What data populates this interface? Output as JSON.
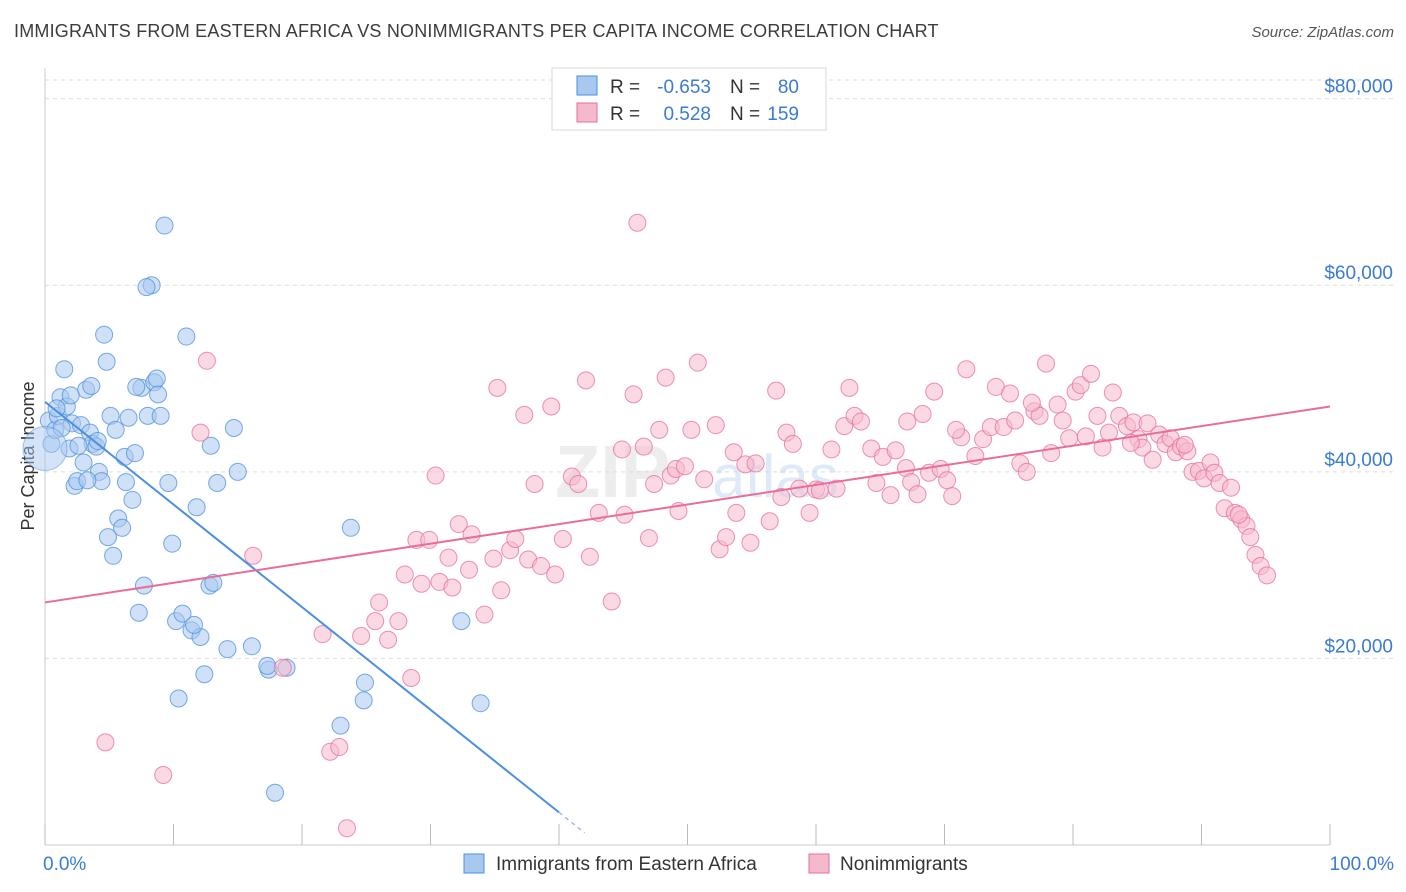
{
  "title": "IMMIGRANTS FROM EASTERN AFRICA VS NONIMMIGRANTS PER CAPITA INCOME CORRELATION CHART",
  "source": "Source: ZipAtlas.com",
  "watermark": {
    "zip": "ZIP",
    "atlas": "atlas"
  },
  "colors": {
    "blue": "#4a8fe0",
    "blue_fill": "#a9c8f0",
    "pink": "#e86e98",
    "pink_fill": "#f5b9cd",
    "axis_label": "#3a7bd5",
    "grid": "#dddddd"
  },
  "chart_data": {
    "type": "scatter",
    "xlabel": "",
    "ylabel": "Per Capita Income",
    "xlim": [
      0,
      100
    ],
    "ylim": [
      0,
      82000
    ],
    "x_tick_labels": [
      "0.0%",
      "100.0%"
    ],
    "y_ticks": [
      20000,
      40000,
      60000,
      80000
    ],
    "y_tick_labels": [
      "$20,000",
      "$40,000",
      "$60,000",
      "$80,000"
    ],
    "grid": true,
    "legend_top": [
      {
        "r_label": "R =",
        "r_value": "-0.653",
        "n_label": "N =",
        "n_value": "80",
        "color": "blue"
      },
      {
        "r_label": "R =",
        "r_value": "0.528",
        "n_label": "N =",
        "n_value": "159",
        "color": "pink"
      }
    ],
    "series": [
      {
        "name": "Immigrants from Eastern Africa",
        "color": "blue",
        "trend": {
          "x0": 0,
          "y0": 47500,
          "x1": 40,
          "y1": 3500,
          "dash_to_x": 42
        },
        "points": [
          [
            0.3,
            45500
          ],
          [
            0.5,
            43000
          ],
          [
            0.8,
            44500
          ],
          [
            1.0,
            46000
          ],
          [
            1.2,
            48000
          ],
          [
            1.5,
            51000
          ],
          [
            1.7,
            47000
          ],
          [
            1.9,
            42500
          ],
          [
            2.1,
            45200
          ],
          [
            2.3,
            38500
          ],
          [
            2.5,
            39000
          ],
          [
            2.8,
            45000
          ],
          [
            3.0,
            41000
          ],
          [
            3.2,
            48800
          ],
          [
            3.5,
            44200
          ],
          [
            3.7,
            43000
          ],
          [
            4.0,
            42700
          ],
          [
            4.2,
            40000
          ],
          [
            4.4,
            39000
          ],
          [
            4.6,
            54700
          ],
          [
            4.9,
            33000
          ],
          [
            5.1,
            46000
          ],
          [
            5.3,
            31000
          ],
          [
            5.5,
            44500
          ],
          [
            5.7,
            35000
          ],
          [
            6.0,
            34000
          ],
          [
            6.2,
            41600
          ],
          [
            6.5,
            45800
          ],
          [
            6.8,
            37000
          ],
          [
            7.0,
            42000
          ],
          [
            7.3,
            24900
          ],
          [
            7.5,
            49000
          ],
          [
            7.7,
            27800
          ],
          [
            8.0,
            46000
          ],
          [
            8.3,
            60000
          ],
          [
            8.5,
            49600
          ],
          [
            8.8,
            48300
          ],
          [
            9.0,
            46000
          ],
          [
            9.3,
            66400
          ],
          [
            9.6,
            38800
          ],
          [
            9.9,
            32300
          ],
          [
            10.2,
            24000
          ],
          [
            10.4,
            15700
          ],
          [
            10.7,
            24800
          ],
          [
            11.0,
            54500
          ],
          [
            11.4,
            23000
          ],
          [
            11.8,
            36200
          ],
          [
            12.1,
            22300
          ],
          [
            12.4,
            18300
          ],
          [
            12.8,
            27800
          ],
          [
            13.1,
            28100
          ],
          [
            13.4,
            38800
          ],
          [
            14.2,
            21000
          ],
          [
            15.0,
            40000
          ],
          [
            16.1,
            21300
          ],
          [
            17.4,
            18800
          ],
          [
            17.9,
            5600
          ],
          [
            18.8,
            19000
          ],
          [
            23.0,
            12800
          ],
          [
            23.8,
            34000
          ],
          [
            24.8,
            15500
          ],
          [
            24.9,
            17400
          ],
          [
            32.4,
            24000
          ],
          [
            33.9,
            15200
          ],
          [
            0.9,
            46800
          ],
          [
            1.3,
            44700
          ],
          [
            2.0,
            48200
          ],
          [
            2.6,
            42800
          ],
          [
            3.3,
            39100
          ],
          [
            3.6,
            49200
          ],
          [
            4.1,
            43300
          ],
          [
            4.8,
            51800
          ],
          [
            6.3,
            38900
          ],
          [
            7.1,
            49100
          ],
          [
            7.9,
            59800
          ],
          [
            8.7,
            50000
          ],
          [
            11.6,
            23600
          ],
          [
            12.9,
            42800
          ],
          [
            14.7,
            44700
          ],
          [
            17.3,
            19200
          ]
        ],
        "outliers_large": [
          [
            0,
            42500
          ]
        ]
      },
      {
        "name": "Nonimmigrants",
        "color": "pink",
        "trend": {
          "x0": 0,
          "y0": 26000,
          "x1": 100,
          "y1": 47000
        },
        "points": [
          [
            4.7,
            11000
          ],
          [
            9.2,
            7500
          ],
          [
            12.1,
            44200
          ],
          [
            12.6,
            51900
          ],
          [
            16.2,
            31000
          ],
          [
            18.5,
            19000
          ],
          [
            21.6,
            22600
          ],
          [
            22.2,
            10000
          ],
          [
            22.9,
            10500
          ],
          [
            23.5,
            1800
          ],
          [
            24.6,
            22400
          ],
          [
            25.7,
            24000
          ],
          [
            26.0,
            26000
          ],
          [
            26.7,
            22000
          ],
          [
            27.5,
            24000
          ],
          [
            28.0,
            29000
          ],
          [
            28.5,
            17900
          ],
          [
            28.9,
            32700
          ],
          [
            29.3,
            28000
          ],
          [
            29.9,
            32700
          ],
          [
            30.4,
            39600
          ],
          [
            30.7,
            28200
          ],
          [
            31.4,
            30800
          ],
          [
            31.7,
            27600
          ],
          [
            32.2,
            34400
          ],
          [
            33.0,
            29500
          ],
          [
            33.2,
            33300
          ],
          [
            34.2,
            24700
          ],
          [
            34.9,
            30700
          ],
          [
            35.2,
            49000
          ],
          [
            35.5,
            27300
          ],
          [
            36.2,
            31600
          ],
          [
            36.6,
            32800
          ],
          [
            37.3,
            46100
          ],
          [
            37.6,
            30600
          ],
          [
            38.1,
            38700
          ],
          [
            38.6,
            29900
          ],
          [
            39.4,
            47000
          ],
          [
            39.7,
            29000
          ],
          [
            40.3,
            32800
          ],
          [
            41.0,
            39500
          ],
          [
            41.5,
            38700
          ],
          [
            42.1,
            49800
          ],
          [
            42.4,
            30900
          ],
          [
            43.1,
            35600
          ],
          [
            44.1,
            26100
          ],
          [
            44.9,
            42400
          ],
          [
            45.1,
            35400
          ],
          [
            45.8,
            48300
          ],
          [
            46.1,
            66700
          ],
          [
            46.6,
            42700
          ],
          [
            47.0,
            32900
          ],
          [
            47.4,
            38700
          ],
          [
            47.8,
            44500
          ],
          [
            48.3,
            50100
          ],
          [
            48.7,
            39600
          ],
          [
            49.1,
            40300
          ],
          [
            49.3,
            35800
          ],
          [
            49.8,
            40600
          ],
          [
            50.3,
            44500
          ],
          [
            50.8,
            51700
          ],
          [
            51.3,
            39200
          ],
          [
            52.2,
            45000
          ],
          [
            52.5,
            31700
          ],
          [
            53.0,
            33000
          ],
          [
            53.6,
            42100
          ],
          [
            53.8,
            35600
          ],
          [
            54.5,
            40800
          ],
          [
            54.9,
            32400
          ],
          [
            55.3,
            40900
          ],
          [
            56.4,
            34700
          ],
          [
            56.9,
            48700
          ],
          [
            57.3,
            37300
          ],
          [
            57.7,
            44200
          ],
          [
            58.2,
            43000
          ],
          [
            58.7,
            38200
          ],
          [
            59.5,
            35600
          ],
          [
            60.0,
            38100
          ],
          [
            60.3,
            38000
          ],
          [
            61.2,
            42400
          ],
          [
            61.6,
            38200
          ],
          [
            62.2,
            44900
          ],
          [
            62.6,
            49000
          ],
          [
            63.0,
            46000
          ],
          [
            63.5,
            45400
          ],
          [
            64.3,
            42500
          ],
          [
            64.7,
            38800
          ],
          [
            65.2,
            41600
          ],
          [
            65.8,
            37500
          ],
          [
            66.2,
            42300
          ],
          [
            67.0,
            40400
          ],
          [
            67.4,
            38900
          ],
          [
            67.9,
            37600
          ],
          [
            68.3,
            46200
          ],
          [
            68.8,
            39900
          ],
          [
            69.2,
            48600
          ],
          [
            69.7,
            40300
          ],
          [
            70.2,
            39100
          ],
          [
            70.6,
            37400
          ],
          [
            71.3,
            43700
          ],
          [
            71.7,
            51000
          ],
          [
            72.4,
            41700
          ],
          [
            73.0,
            43500
          ],
          [
            73.6,
            44800
          ],
          [
            74.0,
            49100
          ],
          [
            74.6,
            44800
          ],
          [
            75.1,
            48400
          ],
          [
            75.5,
            45500
          ],
          [
            75.9,
            40900
          ],
          [
            76.4,
            40000
          ],
          [
            77.0,
            46500
          ],
          [
            77.4,
            46000
          ],
          [
            77.9,
            51600
          ],
          [
            78.3,
            42000
          ],
          [
            78.8,
            47200
          ],
          [
            79.2,
            45500
          ],
          [
            79.7,
            43600
          ],
          [
            80.2,
            48600
          ],
          [
            80.6,
            49300
          ],
          [
            81.0,
            43800
          ],
          [
            81.4,
            50500
          ],
          [
            81.9,
            46000
          ],
          [
            82.3,
            42600
          ],
          [
            82.8,
            44200
          ],
          [
            83.1,
            48500
          ],
          [
            83.6,
            46000
          ],
          [
            84.2,
            44900
          ],
          [
            84.7,
            45300
          ],
          [
            85.1,
            43500
          ],
          [
            85.4,
            42600
          ],
          [
            85.8,
            45200
          ],
          [
            86.2,
            41300
          ],
          [
            86.7,
            44000
          ],
          [
            87.2,
            43000
          ],
          [
            87.6,
            43600
          ],
          [
            88.0,
            42100
          ],
          [
            88.4,
            42700
          ],
          [
            88.9,
            42200
          ],
          [
            89.3,
            40000
          ],
          [
            89.8,
            40100
          ],
          [
            90.2,
            39300
          ],
          [
            90.7,
            41000
          ],
          [
            91.0,
            39900
          ],
          [
            91.4,
            38800
          ],
          [
            91.8,
            36100
          ],
          [
            92.3,
            38300
          ],
          [
            92.6,
            35600
          ],
          [
            93.1,
            34900
          ],
          [
            93.5,
            34200
          ],
          [
            93.8,
            33000
          ],
          [
            94.2,
            31100
          ],
          [
            94.6,
            29900
          ],
          [
            95.1,
            28900
          ],
          [
            67.1,
            45400
          ],
          [
            70.9,
            44500
          ],
          [
            76.8,
            47400
          ],
          [
            84.5,
            43100
          ],
          [
            88.7,
            42900
          ],
          [
            92.9,
            35400
          ]
        ]
      }
    ]
  },
  "legend_bottom": [
    {
      "label": "Immigrants from Eastern Africa",
      "color": "blue"
    },
    {
      "label": "Nonimmigrants",
      "color": "pink"
    }
  ]
}
